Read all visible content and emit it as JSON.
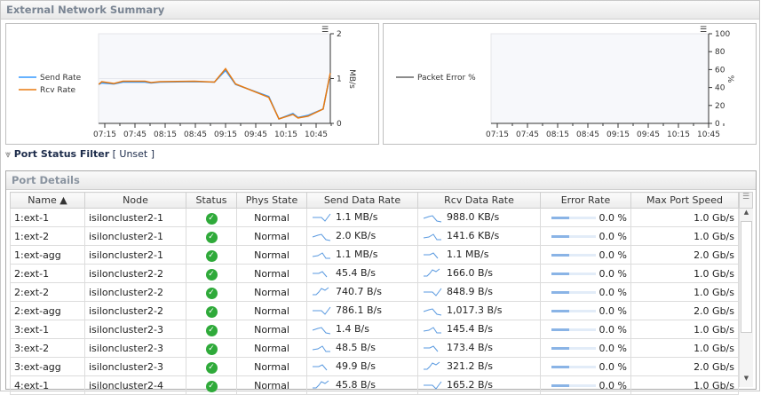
{
  "title": "External Network Summary",
  "chart_data": [
    {
      "type": "line",
      "title": "",
      "ylabel": "MB/s",
      "ylim": [
        0,
        2
      ],
      "yticks": [
        "0",
        "1",
        "2"
      ],
      "xticks": [
        "07:15",
        "07:45",
        "08:15",
        "08:45",
        "09:15",
        "09:45",
        "10:15",
        "10:45"
      ],
      "legend": "left",
      "series": [
        {
          "name": "Send Rate",
          "color": "#3399ff",
          "x": [
            "07:09",
            "07:12",
            "07:24",
            "07:33",
            "07:55",
            "08:01",
            "08:10",
            "08:44",
            "09:04",
            "09:15",
            "09:25",
            "09:58",
            "10:08",
            "10:22",
            "10:27",
            "10:37",
            "10:52",
            "10:59"
          ],
          "values": [
            0.87,
            0.9,
            0.88,
            0.92,
            0.92,
            0.9,
            0.92,
            0.93,
            0.92,
            1.18,
            0.87,
            0.6,
            0.1,
            0.22,
            0.13,
            0.18,
            0.32,
            1.1
          ]
        },
        {
          "name": "Rcv Rate",
          "color": "#e87a10",
          "x": [
            "07:09",
            "07:12",
            "07:24",
            "07:33",
            "07:55",
            "08:01",
            "08:10",
            "08:44",
            "09:04",
            "09:15",
            "09:25",
            "09:58",
            "10:08",
            "10:22",
            "10:27",
            "10:37",
            "10:52",
            "10:59"
          ],
          "values": [
            0.87,
            0.93,
            0.89,
            0.94,
            0.94,
            0.91,
            0.93,
            0.94,
            0.92,
            1.22,
            0.88,
            0.58,
            0.1,
            0.2,
            0.12,
            0.16,
            0.32,
            1.12
          ]
        }
      ]
    },
    {
      "type": "line",
      "title": "",
      "ylabel": "%",
      "ylim": [
        0,
        100
      ],
      "yticks": [
        "0",
        "20",
        "40",
        "60",
        "80",
        "100"
      ],
      "xticks": [
        "07:15",
        "07:45",
        "08:15",
        "08:45",
        "09:15",
        "09:45",
        "10:15",
        "10:45"
      ],
      "legend": "left",
      "series": [
        {
          "name": "Packet Error %",
          "color": "#666666",
          "x": [],
          "values": []
        }
      ]
    }
  ],
  "filter": {
    "label": "Port Status Filter",
    "value": "[ Unset ]"
  },
  "port_details": {
    "title": "Port Details",
    "columns": [
      "Name ▲",
      "Node",
      "Status",
      "Phys State",
      "Send Data Rate",
      "Rcv Data Rate",
      "Error Rate",
      "Max Port Speed"
    ],
    "rows": [
      [
        "1:ext-1",
        "isiloncluster2-1",
        "ok",
        "Normal",
        "1.1 MB/s",
        "988.0 KB/s",
        "0.0 %",
        "1.0 Gb/s"
      ],
      [
        "1:ext-2",
        "isiloncluster2-1",
        "ok",
        "Normal",
        "2.0 KB/s",
        "141.6 KB/s",
        "0.0 %",
        "1.0 Gb/s"
      ],
      [
        "1:ext-agg",
        "isiloncluster2-1",
        "ok",
        "Normal",
        "1.1 MB/s",
        "1.1 MB/s",
        "0.0 %",
        "2.0 Gb/s"
      ],
      [
        "2:ext-1",
        "isiloncluster2-2",
        "ok",
        "Normal",
        "45.4 B/s",
        "166.0 B/s",
        "0.0 %",
        "1.0 Gb/s"
      ],
      [
        "2:ext-2",
        "isiloncluster2-2",
        "ok",
        "Normal",
        "740.7 B/s",
        "848.9 B/s",
        "0.0 %",
        "1.0 Gb/s"
      ],
      [
        "2:ext-agg",
        "isiloncluster2-2",
        "ok",
        "Normal",
        "786.1 B/s",
        "1,017.3 B/s",
        "0.0 %",
        "2.0 Gb/s"
      ],
      [
        "3:ext-1",
        "isiloncluster2-3",
        "ok",
        "Normal",
        "1.4 B/s",
        "145.4 B/s",
        "0.0 %",
        "1.0 Gb/s"
      ],
      [
        "3:ext-2",
        "isiloncluster2-3",
        "ok",
        "Normal",
        "48.5 B/s",
        "173.4 B/s",
        "0.0 %",
        "1.0 Gb/s"
      ],
      [
        "3:ext-agg",
        "isiloncluster2-3",
        "ok",
        "Normal",
        "49.9 B/s",
        "321.2 B/s",
        "0.0 %",
        "2.0 Gb/s"
      ],
      [
        "4:ext-1",
        "isiloncluster2-4",
        "ok",
        "Normal",
        "45.8 B/s",
        "165.2 B/s",
        "0.0 %",
        "1.0 Gb/s"
      ]
    ]
  }
}
